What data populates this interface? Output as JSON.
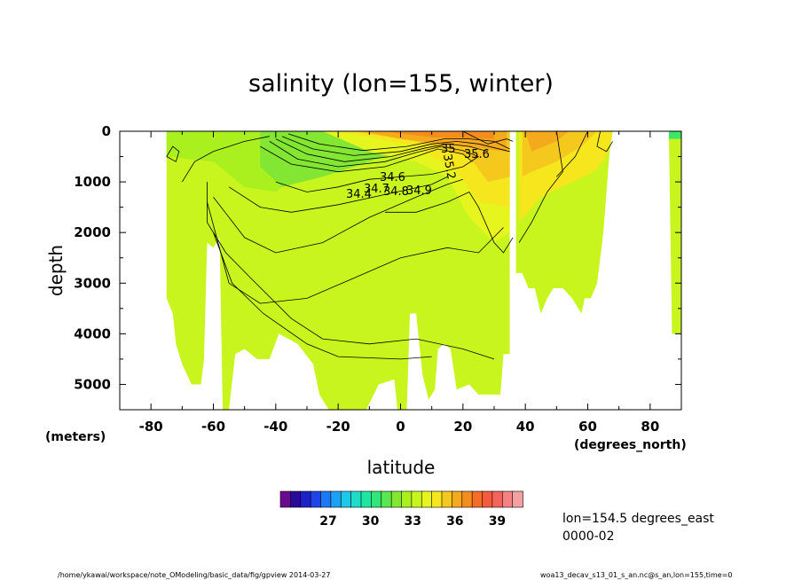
{
  "chart_data": {
    "type": "heatmap",
    "title": "salinity (lon=155, winter)",
    "xlabel": "latitude",
    "xunit": "(degrees_north)",
    "ylabel": "depth",
    "yunit": "(meters)",
    "xlim": [
      -90,
      90
    ],
    "ylim": [
      5500,
      0
    ],
    "x_ticks": [
      -80,
      -60,
      -40,
      -20,
      0,
      20,
      40,
      60,
      80
    ],
    "y_ticks": [
      0,
      1000,
      2000,
      3000,
      4000,
      5000
    ],
    "colorbar": {
      "ticks": [
        27,
        30,
        33,
        36,
        39
      ],
      "colors": [
        "#6a0a8c",
        "#2a0a9a",
        "#1e20c8",
        "#1e46e6",
        "#1e78f5",
        "#1ea0f5",
        "#1ec8e6",
        "#1edcc8",
        "#1ee6a0",
        "#32e678",
        "#5ae650",
        "#82e632",
        "#aaf01e",
        "#c8f51e",
        "#e6f51e",
        "#f5e61e",
        "#f5c81e",
        "#f5aa1e",
        "#f58c1e",
        "#f56e28",
        "#f55a3c",
        "#f5645a",
        "#f58282",
        "#f5a0a0"
      ]
    },
    "contour_labels": [
      "35.6",
      "35.2",
      "35",
      "34.6",
      "34.9",
      "34.8",
      "34.7",
      "34.4"
    ],
    "series": [
      {
        "name": "34.4",
        "x": [
          -40,
          -30,
          -20,
          -10,
          0,
          10,
          20,
          25
        ],
        "y": [
          1000,
          1200,
          1100,
          950,
          900,
          850,
          700,
          500
        ]
      },
      {
        "name": "34.6",
        "x": [
          -55,
          -45,
          -35,
          -20,
          -5,
          10,
          15
        ],
        "y": [
          1100,
          1500,
          1600,
          1450,
          1250,
          1050,
          900
        ]
      },
      {
        "name": "34.7",
        "x": [
          -60,
          -50,
          -40,
          -25,
          -10,
          5,
          15,
          20
        ],
        "y": [
          1300,
          2100,
          2400,
          2200,
          1700,
          1300,
          1050,
          950
        ]
      },
      {
        "name": "34.8",
        "x": [
          -62,
          -55,
          -45,
          -30,
          -15,
          0,
          15,
          25,
          33
        ],
        "y": [
          1400,
          3000,
          3400,
          3300,
          2900,
          2500,
          2300,
          2400,
          1900
        ]
      }
    ]
  },
  "info": {
    "line1": "lon=154.5 degrees_east",
    "line2": "0000-02"
  },
  "footer": {
    "left": "/home/ykawai/workspace/note_OModeling/basic_data/fig/gpview  2014-03-27",
    "right": "woa13_decav_s13_01_s_an.nc@s_an,lon=155,time=0"
  }
}
